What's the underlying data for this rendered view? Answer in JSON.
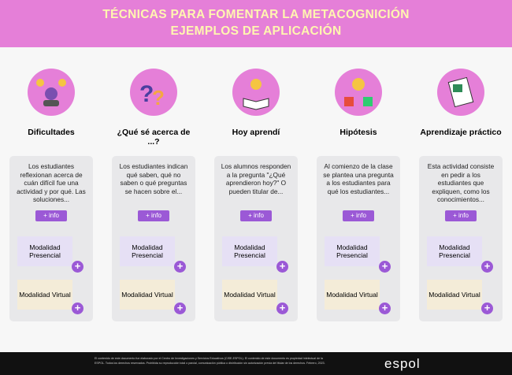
{
  "header": {
    "title_lines": [
      "TÉCNICAS PARA FOMENTAR LA METACOGNICIÓN",
      "EJEMPLOS DE APLICACIÓN"
    ]
  },
  "columns": [
    {
      "title": "Dificultades",
      "text": "Los estudiantes reflexionan acerca de cuán difícil fue una actividad y por qué. Las soluciones...",
      "info": "+ info",
      "presencial": "Modalidad Presencial",
      "virtual": "Modalidad Virtual"
    },
    {
      "title": "¿Qué sé acerca de ...?",
      "text": "Los estudiantes indican qué saben, qué no saben o qué preguntas se hacen sobre el...",
      "info": "+ info",
      "presencial": "Modalidad Presencial",
      "virtual": "Modalidad Virtual"
    },
    {
      "title": "Hoy aprendí",
      "text": "Los alumnos responden a la pregunta \"¿Qué aprendieron hoy?\" O pueden titular de...",
      "info": "+ info",
      "presencial": "Modalidad Presencial",
      "virtual": "Modalidad Virtual"
    },
    {
      "title": "Hipótesis",
      "text": "Al comienzo de la clase se plantea una pregunta a los estudiantes para qué los estudiantes...",
      "info": "+ info",
      "presencial": "Modalidad Presencial",
      "virtual": "Modalidad Virtual"
    },
    {
      "title": "Aprendizaje práctico",
      "text": "Esta actividad consiste en pedir a los estudiantes que expliquen, como los conocimientos...",
      "info": "+ info",
      "presencial": "Modalidad Presencial",
      "virtual": "Modalidad Virtual"
    }
  ],
  "footer": {
    "text": "El contenido de este documento fue elaborado por el Centro de Investigaciones y Servicios Educativos (CISE-ESPOL). El contenido de este documento es propiedad intelectual de la ESPOL. Todos los derechos reservados. Prohibida su reproducción total o parcial, comunicación pública o distribución sin autorización previa del titular de los derechos. Febrero, 2023.",
    "logo": "espol"
  }
}
